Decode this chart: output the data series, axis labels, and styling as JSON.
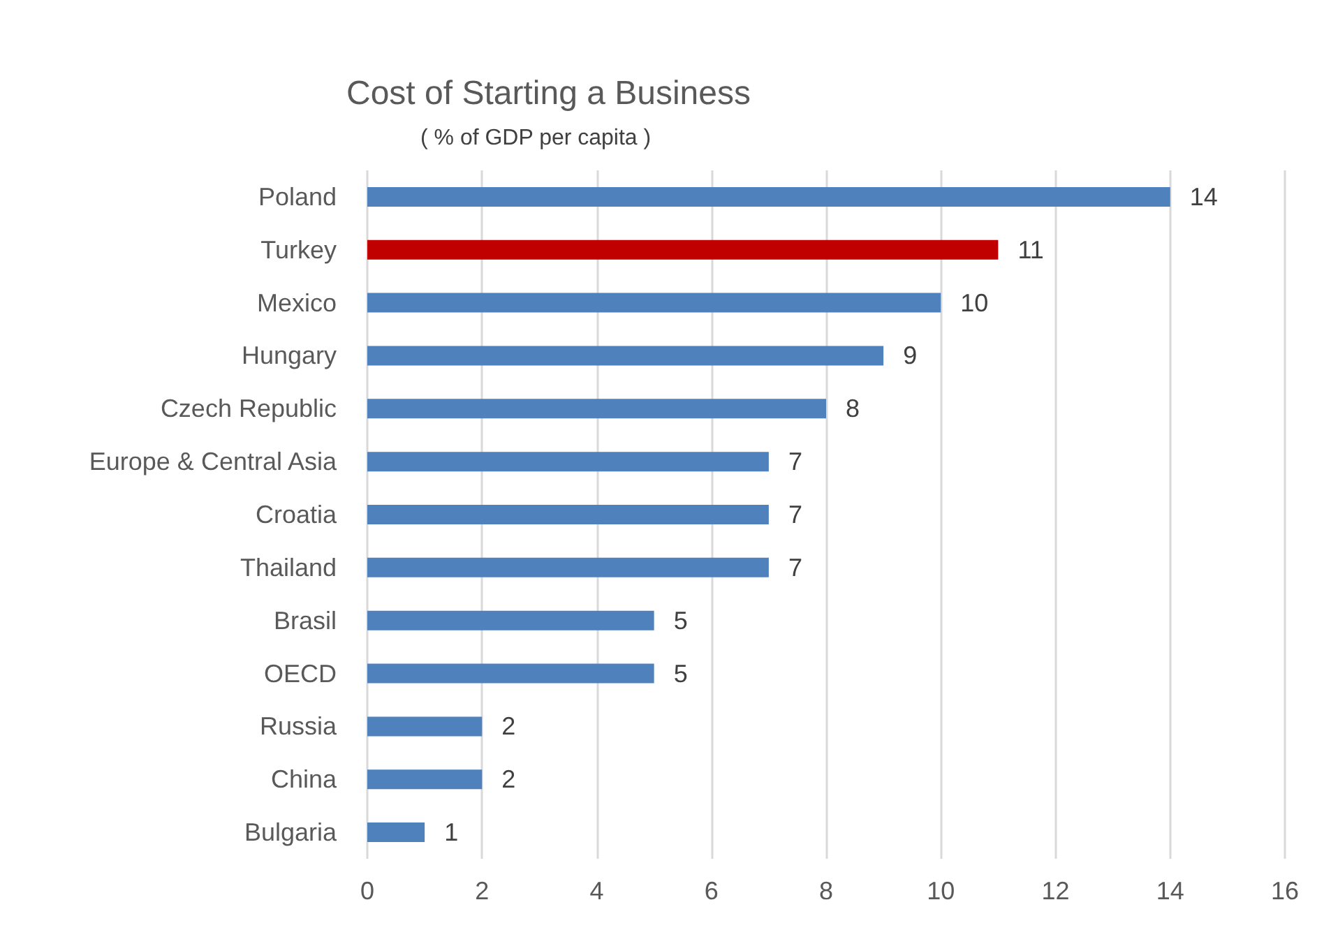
{
  "chart_data": {
    "type": "bar",
    "orientation": "horizontal",
    "title": "Cost of Starting a Business",
    "subtitle": "( % of GDP per capita )",
    "categories": [
      "Poland",
      "Turkey",
      "Mexico",
      "Hungary",
      "Czech Republic",
      "Europe & Central Asia",
      "Croatia",
      "Thailand",
      "Brasil",
      "OECD",
      "Russia",
      "China",
      "Bulgaria"
    ],
    "values": [
      14,
      11,
      10,
      9,
      8,
      7,
      7,
      7,
      5,
      5,
      2,
      2,
      1
    ],
    "colors": [
      "#4f81bd",
      "#c00000",
      "#4f81bd",
      "#4f81bd",
      "#4f81bd",
      "#4f81bd",
      "#4f81bd",
      "#4f81bd",
      "#4f81bd",
      "#4f81bd",
      "#4f81bd",
      "#4f81bd",
      "#4f81bd"
    ],
    "xlim": [
      0,
      16
    ],
    "xticks": [
      0,
      2,
      4,
      6,
      8,
      10,
      12,
      14,
      16
    ],
    "grid": "x",
    "data_labels": true
  }
}
